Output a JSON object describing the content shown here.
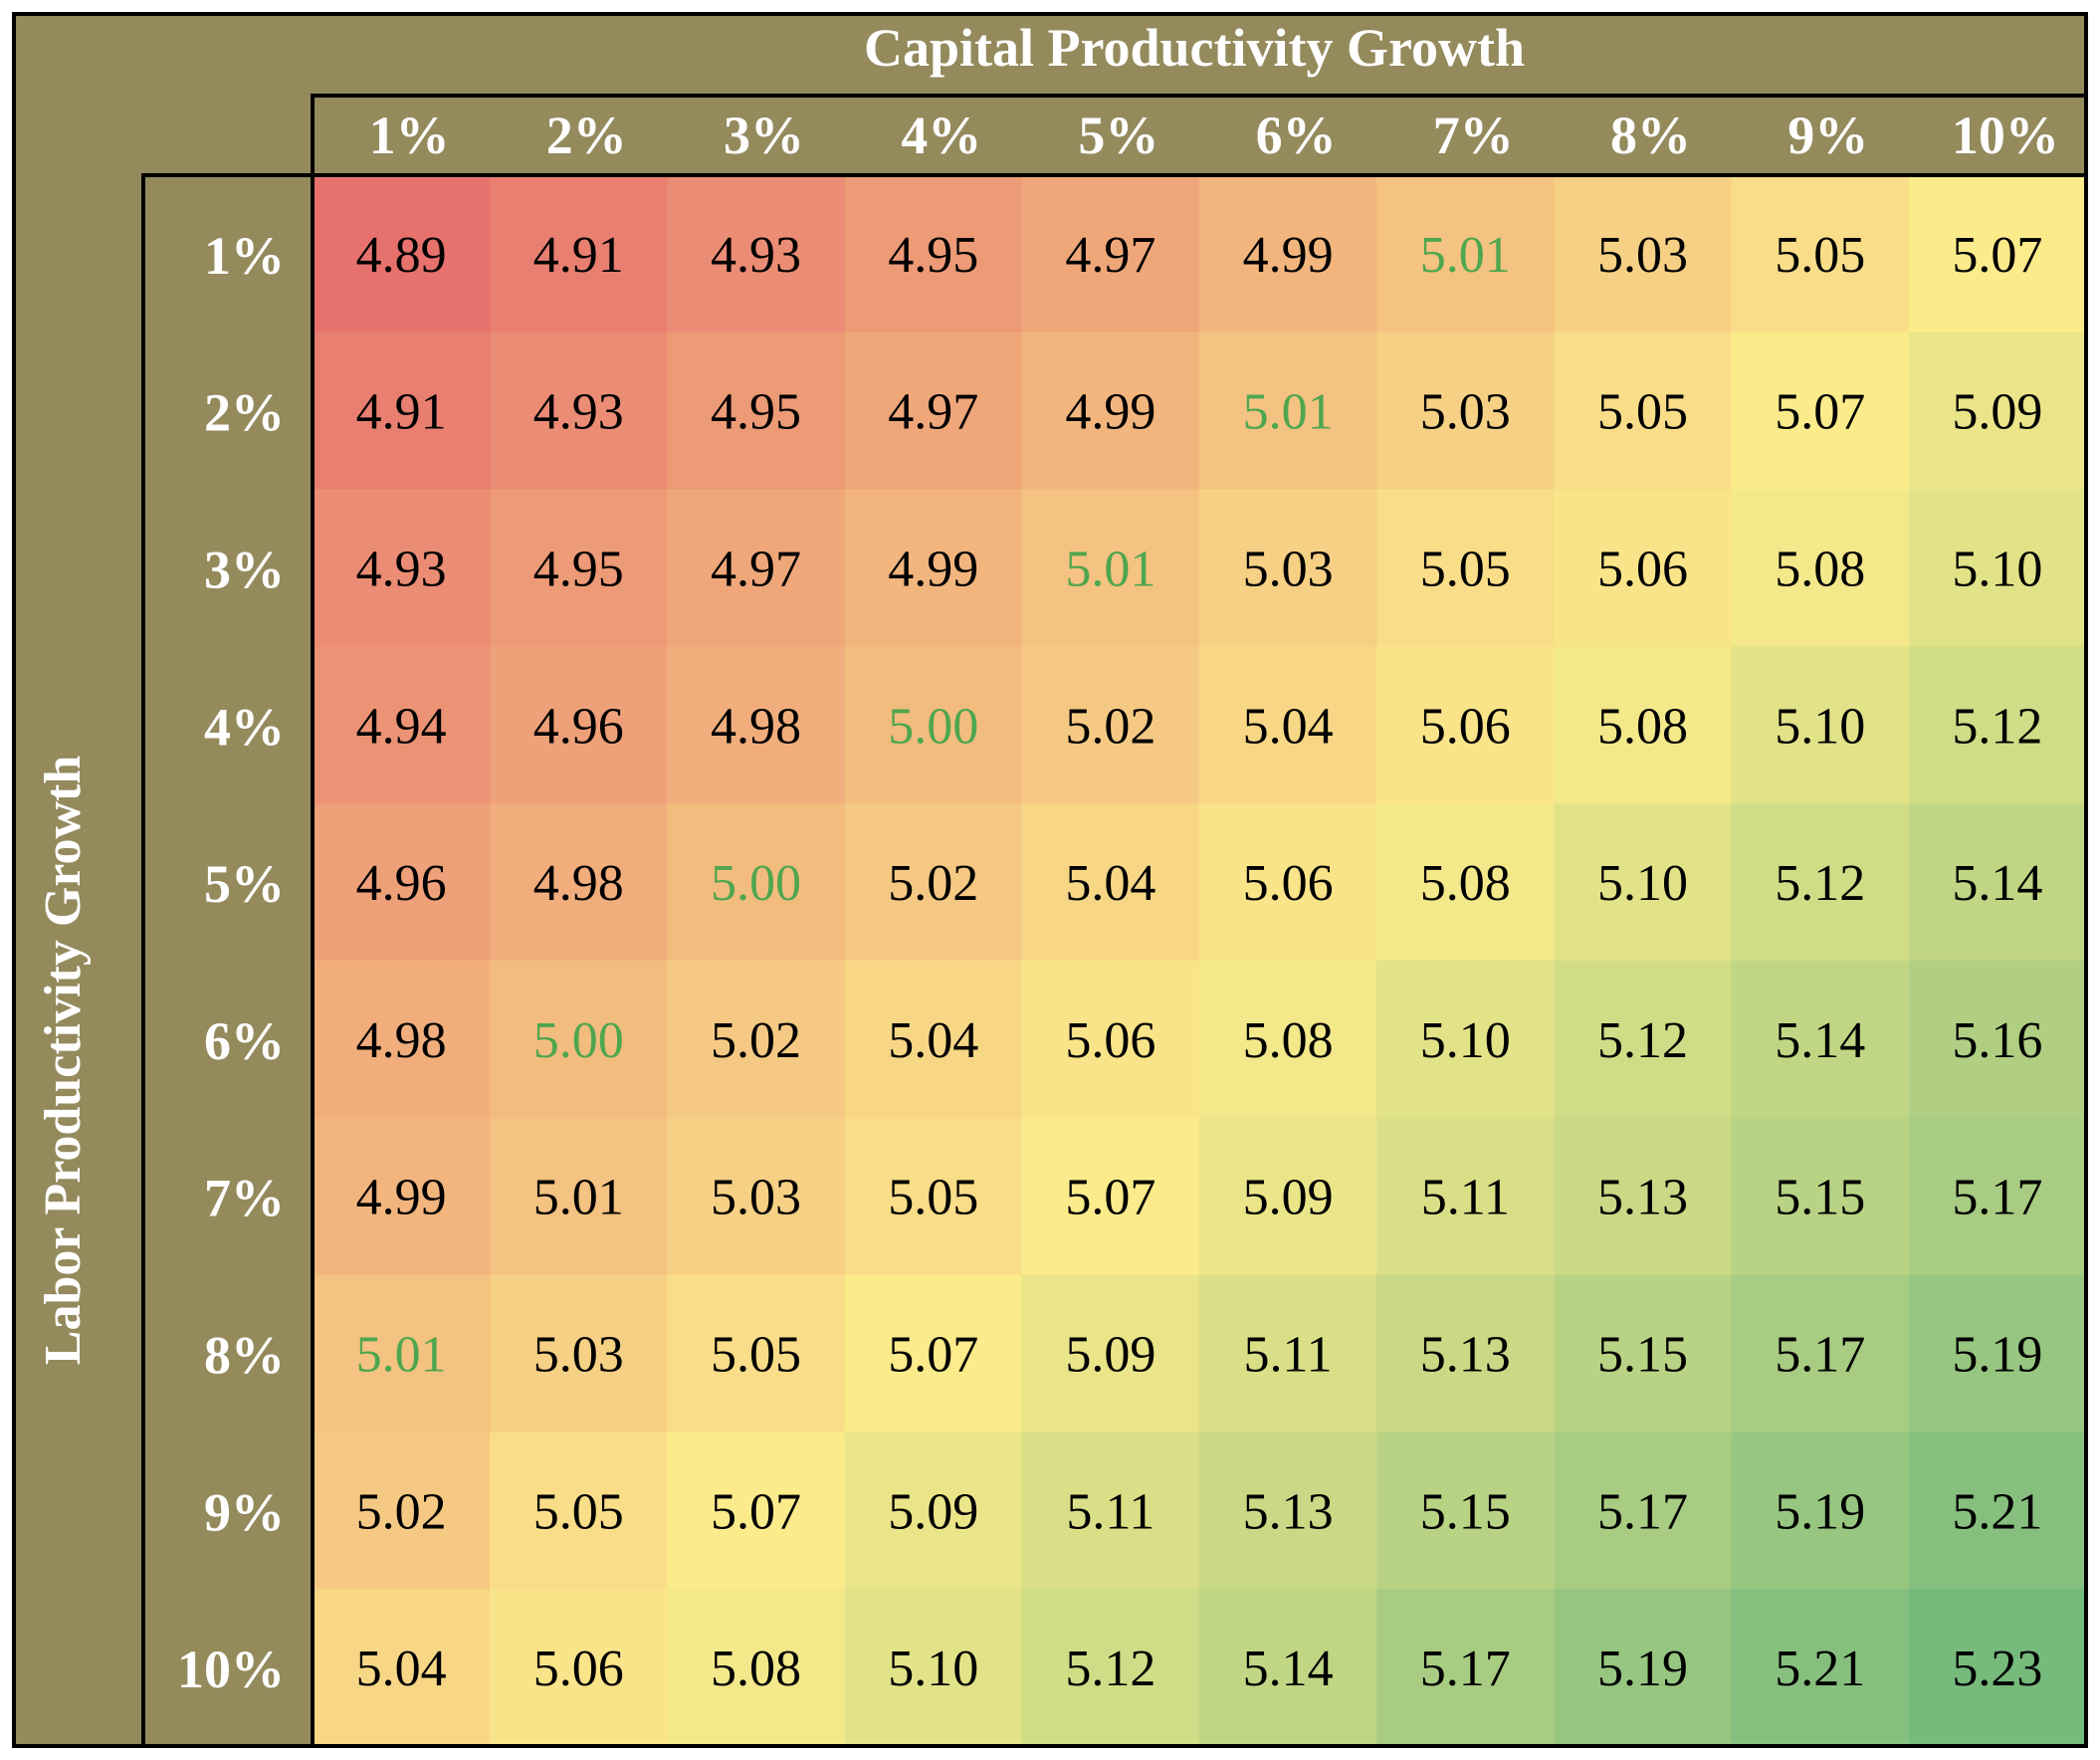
{
  "chart_data": {
    "type": "heatmap",
    "title": "Capital Productivity Growth",
    "xlabel": "Capital Productivity Growth",
    "ylabel": "Labor Productivity Growth",
    "x_categories": [
      "1%",
      "2%",
      "3%",
      "4%",
      "5%",
      "6%",
      "7%",
      "8%",
      "9%",
      "10%"
    ],
    "y_categories": [
      "1%",
      "2%",
      "3%",
      "4%",
      "5%",
      "6%",
      "7%",
      "8%",
      "9%",
      "10%"
    ],
    "values": [
      [
        "4.89",
        "4.91",
        "4.93",
        "4.95",
        "4.97",
        "4.99",
        "5.01",
        "5.03",
        "5.05",
        "5.07"
      ],
      [
        "4.91",
        "4.93",
        "4.95",
        "4.97",
        "4.99",
        "5.01",
        "5.03",
        "5.05",
        "5.07",
        "5.09"
      ],
      [
        "4.93",
        "4.95",
        "4.97",
        "4.99",
        "5.01",
        "5.03",
        "5.05",
        "5.06",
        "5.08",
        "5.10"
      ],
      [
        "4.94",
        "4.96",
        "4.98",
        "5.00",
        "5.02",
        "5.04",
        "5.06",
        "5.08",
        "5.10",
        "5.12"
      ],
      [
        "4.96",
        "4.98",
        "5.00",
        "5.02",
        "5.04",
        "5.06",
        "5.08",
        "5.10",
        "5.12",
        "5.14"
      ],
      [
        "4.98",
        "5.00",
        "5.02",
        "5.04",
        "5.06",
        "5.08",
        "5.10",
        "5.12",
        "5.14",
        "5.16"
      ],
      [
        "4.99",
        "5.01",
        "5.03",
        "5.05",
        "5.07",
        "5.09",
        "5.11",
        "5.13",
        "5.15",
        "5.17"
      ],
      [
        "5.01",
        "5.03",
        "5.05",
        "5.07",
        "5.09",
        "5.11",
        "5.13",
        "5.15",
        "5.17",
        "5.19"
      ],
      [
        "5.02",
        "5.05",
        "5.07",
        "5.09",
        "5.11",
        "5.13",
        "5.15",
        "5.17",
        "5.19",
        "5.21"
      ],
      [
        "5.04",
        "5.06",
        "5.08",
        "5.10",
        "5.12",
        "5.14",
        "5.17",
        "5.19",
        "5.21",
        "5.23"
      ]
    ],
    "highlighted_cells": [
      [
        0,
        6
      ],
      [
        1,
        5
      ],
      [
        2,
        4
      ],
      [
        3,
        3
      ],
      [
        4,
        2
      ],
      [
        5,
        1
      ],
      [
        7,
        0
      ]
    ],
    "colors": {
      "header_bg": "#948a5c",
      "header_text": "#ffffff",
      "border": "#000000",
      "value_text": "#000000",
      "highlight_text": "#4ea64e",
      "scale_low": "#e6716d",
      "scale_mid": "#fbeb8b",
      "scale_high": "#76ba7c"
    }
  }
}
